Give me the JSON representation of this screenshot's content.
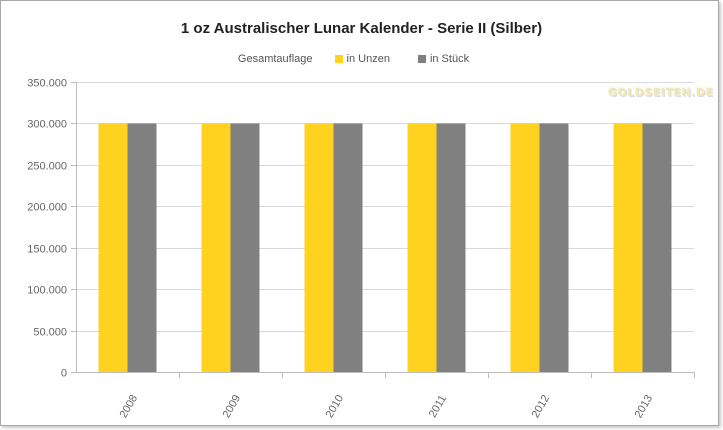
{
  "chart_data": {
    "type": "bar",
    "title": "1 oz Australischer Lunar Kalender - Serie II (Silber)",
    "legend_heading": "Gesamtauflage",
    "legend_position": "top",
    "categories": [
      "2008",
      "2009",
      "2010",
      "2011",
      "2012",
      "2013"
    ],
    "series": [
      {
        "name": "in Unzen",
        "color": "#ffd21f",
        "values": [
          300000,
          300000,
          300000,
          300000,
          300000,
          300000
        ]
      },
      {
        "name": "in Stück",
        "color": "#808080",
        "values": [
          300000,
          300000,
          300000,
          300000,
          300000,
          300000
        ]
      }
    ],
    "ylim": [
      0,
      350000
    ],
    "yticks": [
      "0",
      "50.000",
      "100.000",
      "150.000",
      "200.000",
      "250.000",
      "300.000",
      "350.000"
    ],
    "grid": true,
    "watermark": "GOLDSEITEN.DE"
  }
}
